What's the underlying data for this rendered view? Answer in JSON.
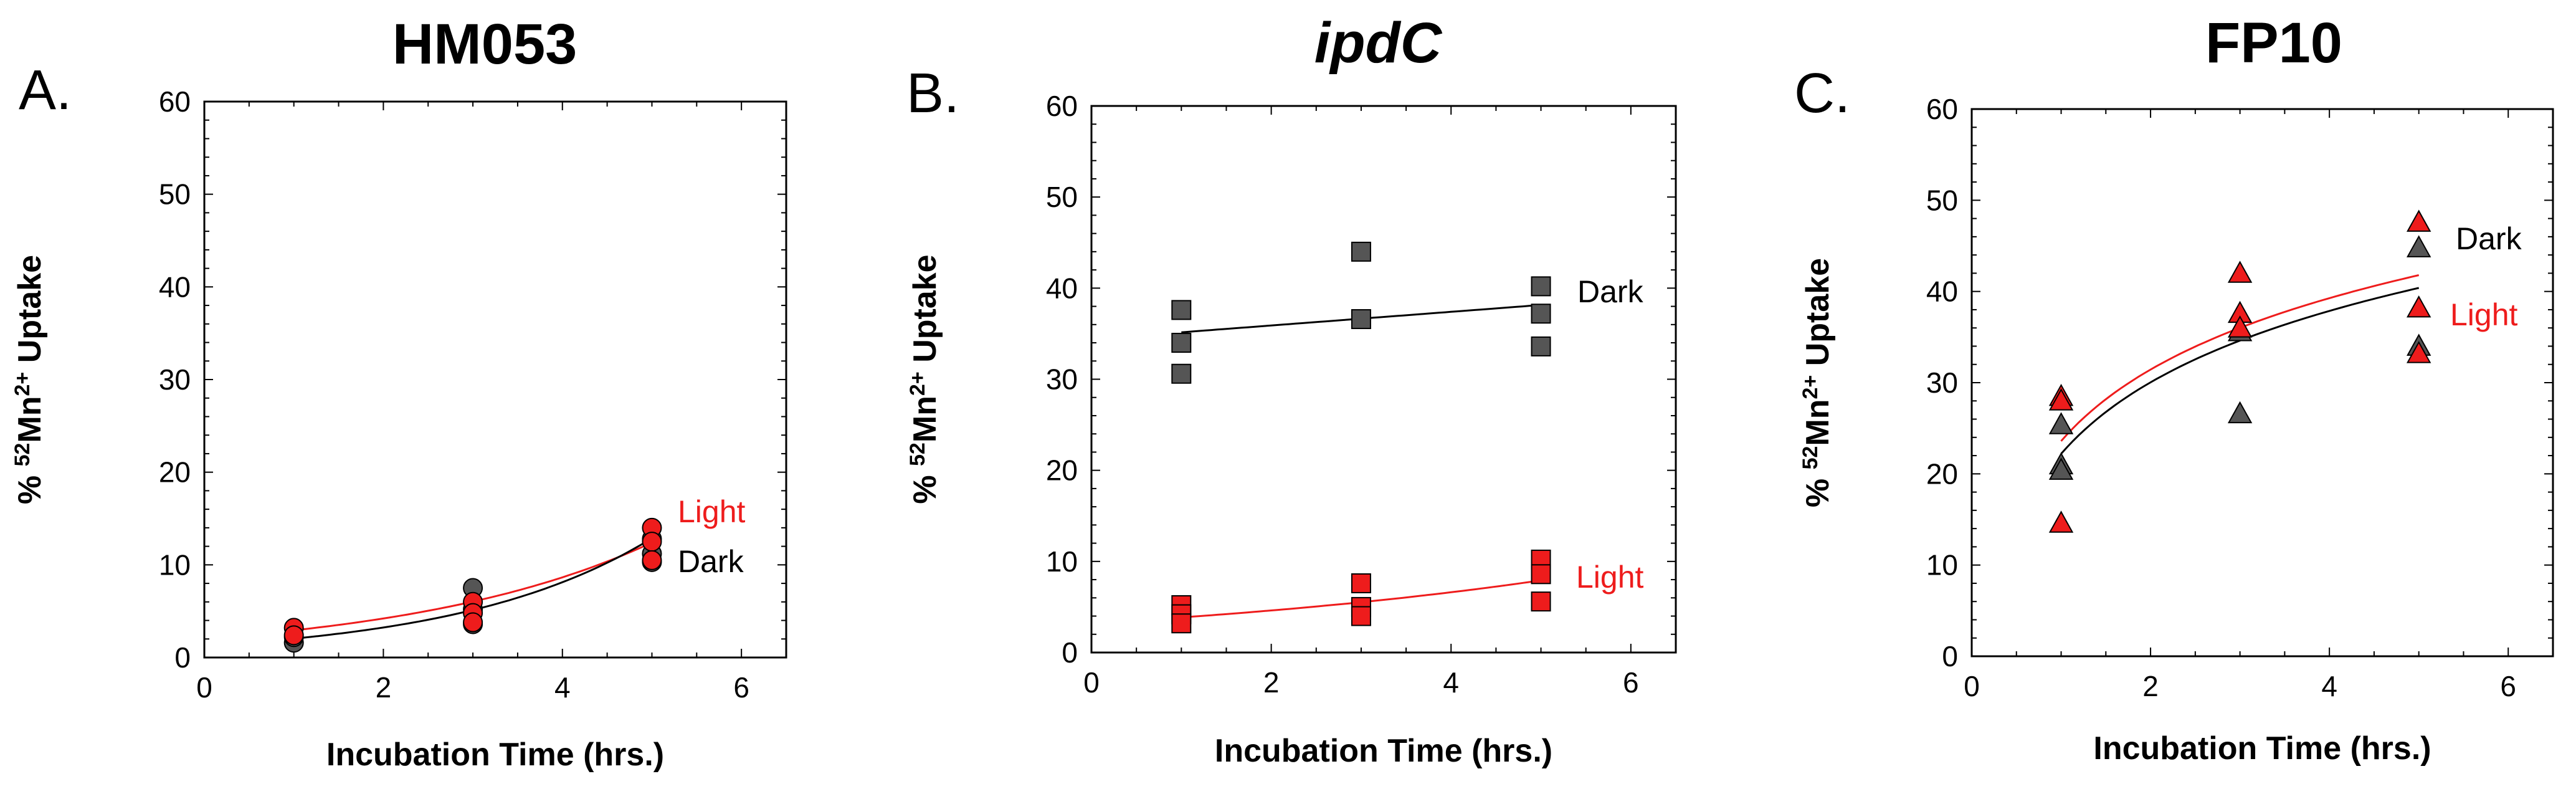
{
  "figure": {
    "panels": [
      {
        "letter": "A.",
        "title": "HM053",
        "title_italic": false
      },
      {
        "letter": "B.",
        "title": "ipdC",
        "title_italic": true
      },
      {
        "letter": "C.",
        "title": "FP10",
        "title_italic": false
      }
    ],
    "xlabel": "Incubation Time (hrs.)",
    "ylabel_parts": [
      "% ",
      "52",
      "Mn",
      "2+",
      " Uptake"
    ],
    "colors": {
      "dark_marker": "#555555",
      "light_marker": "#ee1c1c",
      "dark_line": "#000000",
      "light_line": "#ee1c1c",
      "light_text": "#ee1c1c",
      "dark_text": "#000000"
    }
  },
  "chart_data": [
    {
      "type": "scatter",
      "title": "HM053",
      "xlabel": "Incubation Time (hrs.)",
      "ylabel": "% 52Mn2+ Uptake",
      "xlim": [
        0,
        6.5
      ],
      "ylim": [
        0,
        60
      ],
      "xticks": [
        0,
        2,
        4,
        6
      ],
      "yticks": [
        0,
        10,
        20,
        30,
        40,
        50,
        60
      ],
      "marker": "circle",
      "series": [
        {
          "name": "Light",
          "color": "#ee1c1c",
          "x": [
            1,
            1,
            3,
            3,
            3,
            5,
            5,
            5
          ],
          "y": [
            3.2,
            2.4,
            6.0,
            4.8,
            3.8,
            14.0,
            12.5,
            10.5
          ],
          "trend": {
            "type": "exponential",
            "a": 2.05,
            "b": 0.36
          }
        },
        {
          "name": "Dark",
          "color": "#555555",
          "x": [
            1,
            1,
            3,
            3,
            3,
            5,
            5,
            5
          ],
          "y": [
            1.6,
            2.2,
            7.5,
            5.2,
            3.6,
            12.8,
            11.2,
            10.3
          ],
          "trend": {
            "type": "exponential",
            "a": 1.29,
            "b": 0.46
          }
        }
      ]
    },
    {
      "type": "scatter",
      "title": "ipdC",
      "xlabel": "Incubation Time (hrs.)",
      "ylabel": "% 52Mn2+ Uptake",
      "xlim": [
        0,
        6.5
      ],
      "ylim": [
        0,
        60
      ],
      "xticks": [
        0,
        2,
        4,
        6
      ],
      "yticks": [
        0,
        10,
        20,
        30,
        40,
        50,
        60
      ],
      "marker": "square",
      "series": [
        {
          "name": "Dark",
          "color": "#555555",
          "x": [
            1,
            1,
            1,
            3,
            3,
            5,
            5,
            5
          ],
          "y": [
            37.6,
            34.0,
            30.6,
            44.0,
            36.6,
            40.2,
            37.2,
            33.6
          ],
          "trend": {
            "type": "linear",
            "m": 0.75,
            "c": 34.4
          }
        },
        {
          "name": "Light",
          "color": "#ee1c1c",
          "x": [
            1,
            1,
            1,
            3,
            3,
            3,
            5,
            5,
            5
          ],
          "y": [
            5.2,
            4.2,
            3.2,
            7.6,
            5.0,
            4.0,
            10.2,
            8.6,
            5.6
          ],
          "trend": {
            "type": "exponential",
            "a": 3.22,
            "b": 0.18
          }
        }
      ]
    },
    {
      "type": "scatter",
      "title": "FP10",
      "xlabel": "Incubation Time (hrs.)",
      "ylabel": "% 52Mn2+ Uptake",
      "xlim": [
        0,
        6.5
      ],
      "ylim": [
        0,
        60
      ],
      "xticks": [
        0,
        2,
        4,
        6
      ],
      "yticks": [
        0,
        10,
        20,
        30,
        40,
        50,
        60
      ],
      "marker": "triangle",
      "series": [
        {
          "name": "Light",
          "color": "#ee1c1c",
          "x": [
            1,
            1,
            1,
            3,
            3,
            3,
            5,
            5,
            5
          ],
          "y": [
            28.5,
            28.0,
            14.6,
            42.0,
            37.6,
            36.0,
            47.6,
            38.2,
            33.2
          ],
          "trend": {
            "type": "logarithmic",
            "a": 23.6,
            "k": 11.3
          }
        },
        {
          "name": "Dark",
          "color": "#555555",
          "x": [
            1,
            1,
            1,
            3,
            3,
            5,
            5
          ],
          "y": [
            25.4,
            21.0,
            20.4,
            35.6,
            26.6,
            44.8,
            34.0
          ],
          "trend": {
            "type": "logarithmic",
            "a": 22.2,
            "k": 11.3
          }
        }
      ]
    }
  ]
}
